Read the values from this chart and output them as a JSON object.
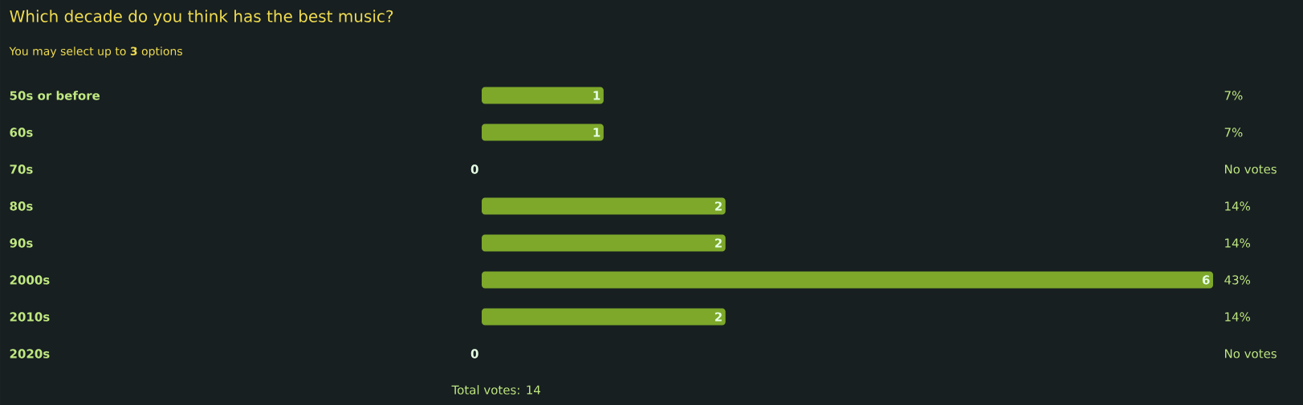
{
  "chart_data": {
    "type": "bar",
    "orientation": "horizontal",
    "title": "Which decade do you think has the best music?",
    "subtitle": "You may select up to **3** options",
    "categories": [
      "50s or before",
      "60s",
      "70s",
      "80s",
      "90s",
      "2000s",
      "2010s",
      "2020s"
    ],
    "values": [
      1,
      1,
      0,
      2,
      2,
      6,
      2,
      0
    ],
    "color": "#7da82a",
    "xlim": [
      0,
      6
    ],
    "data_labels": true,
    "annotations": [
      "7%",
      "7%",
      "No votes",
      "14%",
      "14%",
      "43%",
      "14%",
      "No votes",
      "Total votes: 14"
    ]
  }
}
